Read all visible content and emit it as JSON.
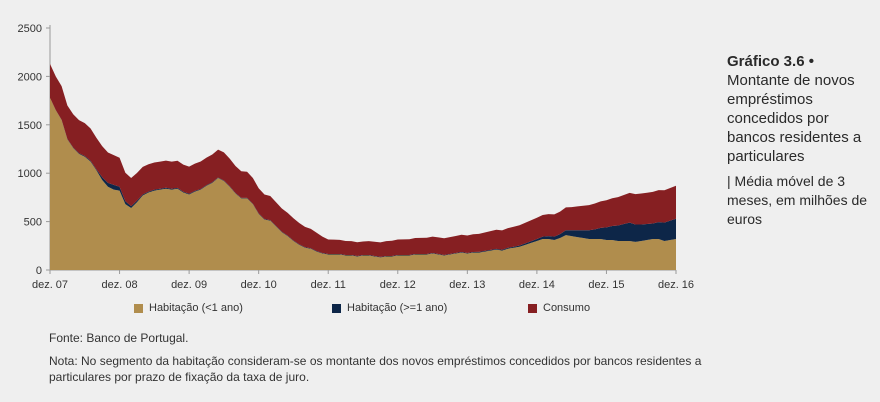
{
  "side": {
    "title": "Gráfico 3.6 •",
    "subtitle": "Montante de novos empréstimos concedidos por bancos residentes a particulares",
    "unit": "| Média móvel de 3 meses, em milhões de euros"
  },
  "source": "Fonte: Banco de Portugal.",
  "note": "Nota: No segmento da habitação consideram-se os montante dos novos empréstimos concedidos por bancos residentes a particulares por prazo de fixação da taxa de juro.",
  "colors": {
    "habitacao_lt1": "#b08d4d",
    "habitacao_ge1": "#0d2648",
    "consumo": "#861f22"
  },
  "chart_data": {
    "type": "area",
    "stacked": true,
    "ylim": [
      0,
      2500
    ],
    "yticks": [
      0,
      500,
      1000,
      1500,
      2000,
      2500
    ],
    "xticks": [
      "dez. 07",
      "dez. 08",
      "dez. 09",
      "dez. 10",
      "dez. 11",
      "dez. 12",
      "dez. 13",
      "dez. 14",
      "dez. 15",
      "dez. 16"
    ],
    "x_range": [
      "2007-12",
      "2016-12"
    ],
    "grid": false,
    "legend_position": "bottom",
    "series": [
      {
        "name": "Habitação (<1 ano)",
        "color": "#b08d4d",
        "points": [
          [
            0,
            1780
          ],
          [
            1,
            1650
          ],
          [
            2,
            1550
          ],
          [
            3,
            1350
          ],
          [
            4,
            1260
          ],
          [
            5,
            1200
          ],
          [
            6,
            1170
          ],
          [
            7,
            1120
          ],
          [
            8,
            1030
          ],
          [
            9,
            930
          ],
          [
            10,
            860
          ],
          [
            11,
            830
          ],
          [
            12,
            820
          ],
          [
            13,
            680
          ],
          [
            14,
            640
          ],
          [
            15,
            700
          ],
          [
            16,
            770
          ],
          [
            17,
            800
          ],
          [
            18,
            820
          ],
          [
            19,
            830
          ],
          [
            20,
            840
          ],
          [
            21,
            830
          ],
          [
            22,
            840
          ],
          [
            23,
            800
          ],
          [
            24,
            780
          ],
          [
            25,
            810
          ],
          [
            26,
            830
          ],
          [
            27,
            870
          ],
          [
            28,
            900
          ],
          [
            29,
            950
          ],
          [
            30,
            920
          ],
          [
            31,
            860
          ],
          [
            32,
            790
          ],
          [
            33,
            740
          ],
          [
            34,
            740
          ],
          [
            35,
            680
          ],
          [
            36,
            580
          ],
          [
            37,
            520
          ],
          [
            38,
            510
          ],
          [
            39,
            450
          ],
          [
            40,
            390
          ],
          [
            41,
            350
          ],
          [
            42,
            300
          ],
          [
            43,
            260
          ],
          [
            44,
            230
          ],
          [
            45,
            220
          ],
          [
            46,
            190
          ],
          [
            47,
            170
          ],
          [
            48,
            160
          ],
          [
            49,
            160
          ],
          [
            50,
            160
          ],
          [
            51,
            150
          ],
          [
            52,
            150
          ],
          [
            53,
            140
          ],
          [
            54,
            150
          ],
          [
            55,
            150
          ],
          [
            56,
            140
          ],
          [
            57,
            130
          ],
          [
            58,
            140
          ],
          [
            59,
            140
          ],
          [
            60,
            150
          ],
          [
            61,
            150
          ],
          [
            62,
            150
          ],
          [
            63,
            160
          ],
          [
            64,
            160
          ],
          [
            65,
            160
          ],
          [
            66,
            170
          ],
          [
            67,
            160
          ],
          [
            68,
            150
          ],
          [
            69,
            160
          ],
          [
            70,
            170
          ],
          [
            71,
            180
          ],
          [
            72,
            170
          ],
          [
            73,
            180
          ],
          [
            74,
            180
          ],
          [
            75,
            190
          ],
          [
            76,
            200
          ],
          [
            77,
            210
          ],
          [
            78,
            200
          ],
          [
            79,
            220
          ],
          [
            80,
            230
          ],
          [
            81,
            240
          ],
          [
            82,
            260
          ],
          [
            83,
            280
          ],
          [
            84,
            300
          ],
          [
            85,
            320
          ],
          [
            86,
            320
          ],
          [
            87,
            310
          ],
          [
            88,
            330
          ],
          [
            89,
            360
          ],
          [
            90,
            350
          ],
          [
            91,
            340
          ],
          [
            92,
            330
          ],
          [
            93,
            320
          ],
          [
            94,
            320
          ],
          [
            95,
            320
          ],
          [
            96,
            310
          ],
          [
            97,
            310
          ],
          [
            98,
            300
          ],
          [
            99,
            300
          ],
          [
            100,
            300
          ],
          [
            101,
            290
          ],
          [
            102,
            300
          ],
          [
            103,
            310
          ],
          [
            104,
            320
          ],
          [
            105,
            320
          ],
          [
            106,
            300
          ],
          [
            107,
            310
          ],
          [
            108,
            320
          ]
        ]
      },
      {
        "name": "Habitação (>=1 ano)",
        "color": "#0d2648",
        "points": [
          [
            0,
            0
          ],
          [
            8,
            10
          ],
          [
            9,
            30
          ],
          [
            10,
            40
          ],
          [
            11,
            50
          ],
          [
            12,
            40
          ],
          [
            13,
            30
          ],
          [
            14,
            20
          ],
          [
            16,
            10
          ],
          [
            20,
            10
          ],
          [
            30,
            5
          ],
          [
            40,
            5
          ],
          [
            60,
            5
          ],
          [
            70,
            5
          ],
          [
            80,
            10
          ],
          [
            84,
            20
          ],
          [
            86,
            30
          ],
          [
            88,
            40
          ],
          [
            90,
            60
          ],
          [
            92,
            80
          ],
          [
            94,
            100
          ],
          [
            96,
            130
          ],
          [
            98,
            160
          ],
          [
            100,
            190
          ],
          [
            102,
            170
          ],
          [
            104,
            160
          ],
          [
            106,
            190
          ],
          [
            108,
            210
          ]
        ]
      },
      {
        "name": "Consumo",
        "color": "#861f22",
        "points": [
          [
            0,
            350
          ],
          [
            6,
            340
          ],
          [
            12,
            300
          ],
          [
            14,
            290
          ],
          [
            18,
            280
          ],
          [
            24,
            280
          ],
          [
            30,
            290
          ],
          [
            36,
            260
          ],
          [
            42,
            230
          ],
          [
            46,
            190
          ],
          [
            48,
            150
          ],
          [
            54,
            140
          ],
          [
            60,
            160
          ],
          [
            66,
            170
          ],
          [
            72,
            180
          ],
          [
            78,
            200
          ],
          [
            84,
            220
          ],
          [
            90,
            240
          ],
          [
            96,
            280
          ],
          [
            102,
            320
          ],
          [
            108,
            340
          ]
        ]
      }
    ]
  }
}
